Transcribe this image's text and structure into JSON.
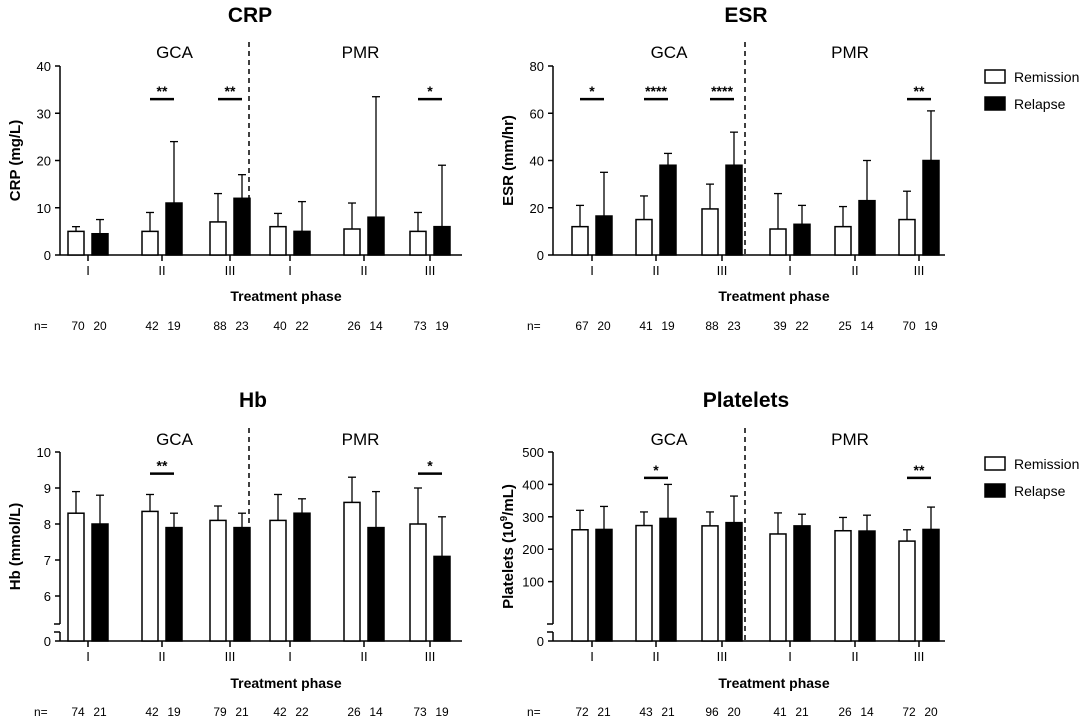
{
  "figure": {
    "legend": {
      "remission_label": "Remission",
      "relapse_label": "Relapse"
    },
    "x_axis_label": "Treatment phase",
    "n_prefix": "n=",
    "phase_labels": [
      "I",
      "II",
      "III",
      "I",
      "II",
      "III"
    ],
    "group_labels": [
      "GCA",
      "PMR"
    ]
  },
  "chart_data": [
    {
      "type": "bar",
      "title": "CRP",
      "ylabel": "CRP (mg/L)",
      "xlabel": "Treatment phase",
      "ylim": [
        0,
        40
      ],
      "yticks": [
        0,
        10,
        20,
        30,
        40
      ],
      "axis_break": false,
      "groups": [
        "GCA",
        "PMR"
      ],
      "categories": [
        "I",
        "II",
        "III",
        "I",
        "II",
        "III"
      ],
      "series": [
        {
          "name": "Remission",
          "values": [
            5,
            5,
            7,
            6,
            5.5,
            5
          ],
          "errors": [
            6,
            9,
            13,
            8.8,
            11,
            9
          ]
        },
        {
          "name": "Relapse",
          "values": [
            4.5,
            11,
            12,
            5,
            8,
            6
          ],
          "errors": [
            7.5,
            24,
            17,
            11.3,
            33.5,
            19
          ]
        }
      ],
      "significance": [
        {
          "category_index": 1,
          "text": "**",
          "y": 33
        },
        {
          "category_index": 2,
          "text": "**",
          "y": 33
        },
        {
          "category_index": 5,
          "text": "*",
          "y": 33
        }
      ],
      "n": [
        [
          "70",
          "20"
        ],
        [
          "42",
          "19"
        ],
        [
          "88",
          "23"
        ],
        [
          "40",
          "22"
        ],
        [
          "26",
          "14"
        ],
        [
          "73",
          "19"
        ]
      ]
    },
    {
      "type": "bar",
      "title": "ESR",
      "ylabel": "ESR (mm/hr)",
      "xlabel": "Treatment phase",
      "ylim": [
        0,
        80
      ],
      "yticks": [
        0,
        20,
        40,
        60,
        80
      ],
      "axis_break": false,
      "groups": [
        "GCA",
        "PMR"
      ],
      "categories": [
        "I",
        "II",
        "III",
        "I",
        "II",
        "III"
      ],
      "series": [
        {
          "name": "Remission",
          "values": [
            12,
            15,
            19.5,
            11,
            12,
            15
          ],
          "errors": [
            21,
            25,
            30,
            26,
            20.5,
            27
          ]
        },
        {
          "name": "Relapse",
          "values": [
            16.5,
            38,
            38,
            13,
            23,
            40
          ],
          "errors": [
            35,
            43,
            52,
            21,
            40,
            61
          ]
        }
      ],
      "significance": [
        {
          "category_index": 0,
          "text": "*",
          "y": 66
        },
        {
          "category_index": 1,
          "text": "****",
          "y": 66
        },
        {
          "category_index": 2,
          "text": "****",
          "y": 66
        },
        {
          "category_index": 5,
          "text": "**",
          "y": 66
        }
      ],
      "n": [
        [
          "67",
          "20"
        ],
        [
          "41",
          "19"
        ],
        [
          "88",
          "23"
        ],
        [
          "39",
          "22"
        ],
        [
          "25",
          "14"
        ],
        [
          "70",
          "19"
        ]
      ]
    },
    {
      "type": "bar",
      "title": "Hb",
      "ylabel": "Hb (mmol/L)",
      "xlabel": "Treatment phase",
      "ylim": [
        5.5,
        10
      ],
      "yticks": [
        6,
        7,
        8,
        9,
        10
      ],
      "axis_break": true,
      "break_zero_label": "0",
      "groups": [
        "GCA",
        "PMR"
      ],
      "categories": [
        "I",
        "II",
        "III",
        "I",
        "II",
        "III"
      ],
      "series": [
        {
          "name": "Remission",
          "values": [
            8.3,
            8.35,
            8.1,
            8.1,
            8.6,
            8.0
          ],
          "errors": [
            8.9,
            8.82,
            8.5,
            8.82,
            9.3,
            9.0
          ]
        },
        {
          "name": "Relapse",
          "values": [
            8.0,
            7.9,
            7.9,
            8.3,
            7.9,
            7.1
          ],
          "errors": [
            8.8,
            8.3,
            8.3,
            8.7,
            8.9,
            8.2
          ]
        }
      ],
      "significance": [
        {
          "category_index": 1,
          "text": "**",
          "y": 9.4
        },
        {
          "category_index": 5,
          "text": "*",
          "y": 9.4
        }
      ],
      "n": [
        [
          "74",
          "21"
        ],
        [
          "42",
          "19"
        ],
        [
          "79",
          "21"
        ],
        [
          "42",
          "22"
        ],
        [
          "26",
          "14"
        ],
        [
          "73",
          "19"
        ]
      ]
    },
    {
      "type": "bar",
      "title": "Platelets",
      "ylabel": "Platelets (10⁹/mL)",
      "xlabel": "Treatment phase",
      "ylim": [
        0,
        500
      ],
      "yticks": [
        100,
        200,
        300,
        400,
        500
      ],
      "axis_break": true,
      "break_zero_label": "0",
      "groups": [
        "GCA",
        "PMR"
      ],
      "categories": [
        "I",
        "II",
        "III",
        "I",
        "II",
        "III"
      ],
      "series": [
        {
          "name": "Remission",
          "values": [
            260,
            273,
            272,
            247,
            257,
            225
          ],
          "errors": [
            320,
            315,
            315,
            312,
            298,
            260
          ]
        },
        {
          "name": "Relapse",
          "values": [
            261,
            295,
            282,
            272,
            256,
            261
          ],
          "errors": [
            332,
            400,
            364,
            308,
            305,
            330
          ]
        }
      ],
      "significance": [
        {
          "category_index": 1,
          "text": "*",
          "y": 420
        },
        {
          "category_index": 5,
          "text": "**",
          "y": 420
        }
      ],
      "n": [
        [
          "72",
          "21"
        ],
        [
          "43",
          "21"
        ],
        [
          "96",
          "20"
        ],
        [
          "41",
          "21"
        ],
        [
          "26",
          "14"
        ],
        [
          "72",
          "20"
        ]
      ]
    }
  ]
}
